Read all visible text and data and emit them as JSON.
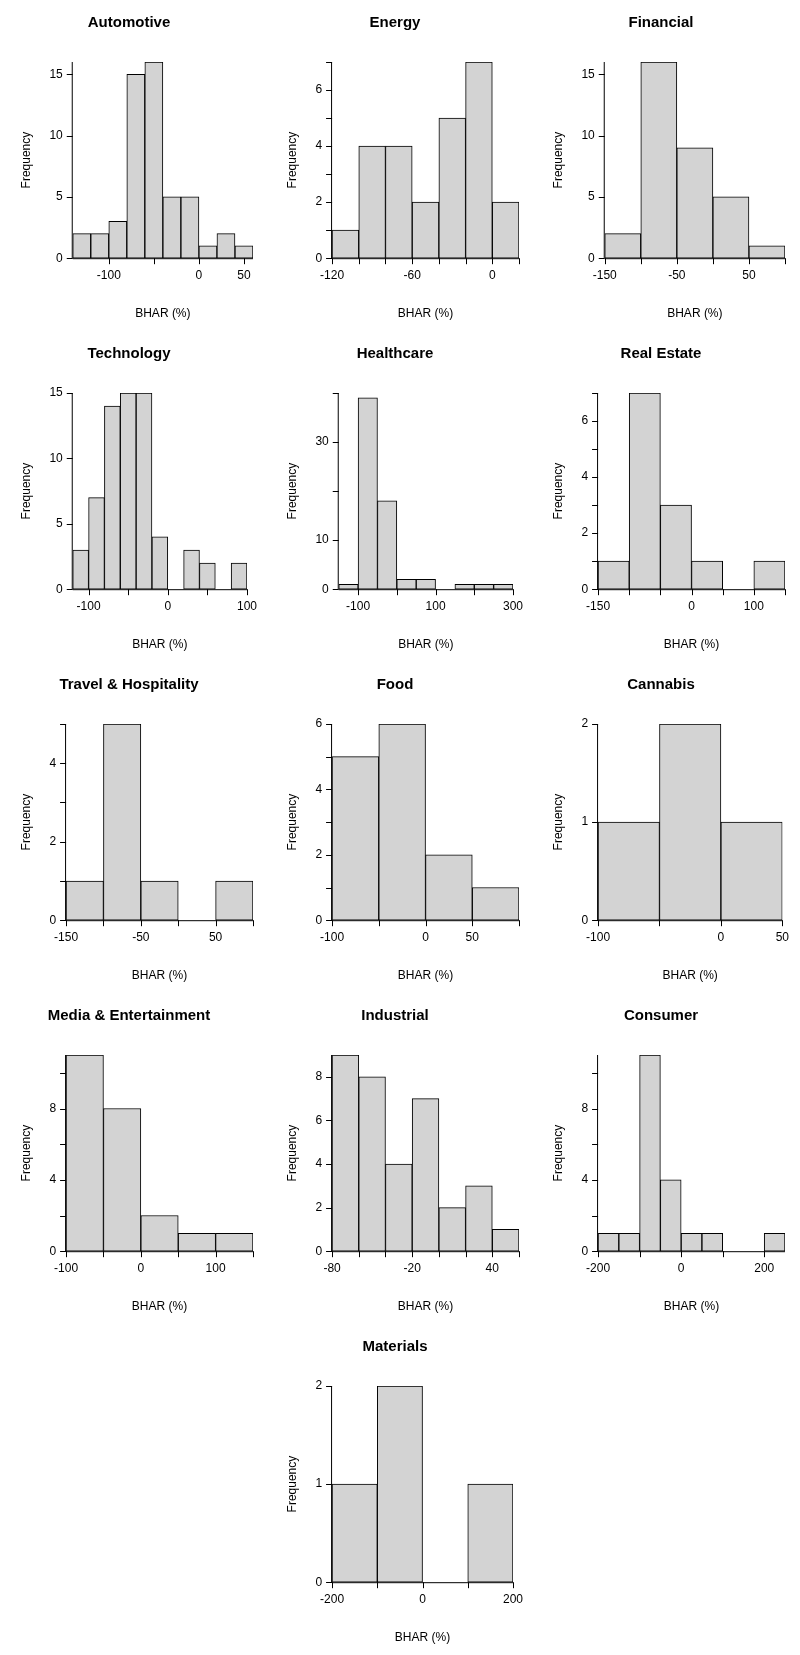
{
  "chart_data": [
    {
      "type": "histogram",
      "title": "Automotive",
      "xlabel": "BHAR (%)",
      "ylabel": "Frequency",
      "color": "#d3d3d3",
      "bins": [
        -140,
        -120,
        -100,
        -80,
        -60,
        -40,
        -20,
        0,
        20,
        40,
        60
      ],
      "values": [
        2,
        2,
        3,
        15,
        16,
        5,
        5,
        1,
        2,
        1
      ],
      "xlim": [
        -140,
        60
      ],
      "xticks": [
        -100,
        {
          "value": -50,
          "label": null
        },
        0,
        50
      ],
      "ylim": [
        0,
        16
      ],
      "yticks": [
        0,
        5,
        10,
        15
      ]
    },
    {
      "type": "histogram",
      "title": "Energy",
      "xlabel": "BHAR (%)",
      "ylabel": "Frequency",
      "color": "#d3d3d3",
      "bins": [
        -120,
        -100,
        -80,
        -60,
        -40,
        -20,
        0,
        20
      ],
      "values": [
        1,
        4,
        4,
        2,
        5,
        7,
        2
      ],
      "xlim": [
        -120,
        20
      ],
      "xticks": [
        -120,
        {
          "value": -100,
          "label": null
        },
        {
          "value": -80,
          "label": null
        },
        -60,
        {
          "value": -40,
          "label": null
        },
        {
          "value": -20,
          "label": null
        },
        0,
        {
          "value": 20,
          "label": null
        }
      ],
      "ylim": [
        0,
        7
      ],
      "yticks": [
        0,
        {
          "value": 1,
          "label": null
        },
        2,
        {
          "value": 3,
          "label": null
        },
        4,
        {
          "value": 5,
          "label": null
        },
        6,
        {
          "value": 7,
          "label": null
        }
      ]
    },
    {
      "type": "histogram",
      "title": "Financial",
      "xlabel": "BHAR (%)",
      "ylabel": "Frequency",
      "color": "#d3d3d3",
      "bins": [
        -150,
        -100,
        -50,
        0,
        50,
        100
      ],
      "values": [
        2,
        16,
        9,
        5,
        1
      ],
      "xlim": [
        -150,
        100
      ],
      "xticks": [
        -150,
        {
          "value": -100,
          "label": null
        },
        -50,
        {
          "value": 0,
          "label": null
        },
        50,
        {
          "value": 100,
          "label": null
        }
      ],
      "ylim": [
        0,
        16
      ],
      "yticks": [
        0,
        5,
        10,
        15
      ]
    },
    {
      "type": "histogram",
      "title": "Technology",
      "xlabel": "BHAR (%)",
      "ylabel": "Frequency",
      "color": "#d3d3d3",
      "bins": [
        -120,
        -100,
        -80,
        -60,
        -40,
        -20,
        0,
        20,
        40,
        60,
        80,
        100
      ],
      "values": [
        3,
        7,
        14,
        15,
        15,
        4,
        0,
        3,
        2,
        0,
        2
      ],
      "xlim": [
        -120,
        100
      ],
      "xticks": [
        -100,
        {
          "value": -50,
          "label": null
        },
        0,
        {
          "value": 50,
          "label": null
        },
        100
      ],
      "ylim": [
        0,
        15
      ],
      "yticks": [
        0,
        5,
        10,
        15
      ]
    },
    {
      "type": "histogram",
      "title": "Healthcare",
      "xlabel": "BHAR (%)",
      "ylabel": "Frequency",
      "color": "#d3d3d3",
      "bins": [
        -150,
        -100,
        -50,
        0,
        50,
        100,
        150,
        200,
        250,
        300
      ],
      "values": [
        1,
        39,
        18,
        2,
        2,
        0,
        1,
        1,
        1
      ],
      "xlim": [
        -150,
        300
      ],
      "xticks": [
        -100,
        {
          "value": 0,
          "label": null
        },
        100,
        {
          "value": 200,
          "label": null
        },
        300
      ],
      "ylim": [
        0,
        40
      ],
      "yticks": [
        0,
        10,
        {
          "value": 20,
          "label": null
        },
        30,
        {
          "value": 40,
          "label": null
        }
      ]
    },
    {
      "type": "histogram",
      "title": "Real Estate",
      "xlabel": "BHAR (%)",
      "ylabel": "Frequency",
      "color": "#d3d3d3",
      "bins": [
        -150,
        -100,
        -50,
        0,
        50,
        100,
        150
      ],
      "values": [
        1,
        7,
        3,
        1,
        0,
        1
      ],
      "xlim": [
        -150,
        150
      ],
      "xticks": [
        -150,
        {
          "value": -100,
          "label": null
        },
        {
          "value": -50,
          "label": null
        },
        0,
        {
          "value": 50,
          "label": null
        },
        100,
        {
          "value": 150,
          "label": null
        }
      ],
      "ylim": [
        0,
        7
      ],
      "yticks": [
        0,
        {
          "value": 1,
          "label": null
        },
        2,
        {
          "value": 3,
          "label": null
        },
        4,
        {
          "value": 5,
          "label": null
        },
        6,
        {
          "value": 7,
          "label": null
        }
      ]
    },
    {
      "type": "histogram",
      "title": "Travel & Hospitality",
      "xlabel": "BHAR (%)",
      "ylabel": "Frequency",
      "color": "#d3d3d3",
      "bins": [
        -150,
        -100,
        -50,
        0,
        50,
        100
      ],
      "values": [
        1,
        5,
        1,
        0,
        1
      ],
      "xlim": [
        -150,
        100
      ],
      "xticks": [
        -150,
        {
          "value": -100,
          "label": null
        },
        -50,
        {
          "value": 0,
          "label": null
        },
        50,
        {
          "value": 100,
          "label": null
        }
      ],
      "ylim": [
        0,
        5
      ],
      "yticks": [
        0,
        {
          "value": 1,
          "label": null
        },
        2,
        {
          "value": 3,
          "label": null
        },
        4,
        {
          "value": 5,
          "label": null
        }
      ]
    },
    {
      "type": "histogram",
      "title": "Food",
      "xlabel": "BHAR (%)",
      "ylabel": "Frequency",
      "color": "#d3d3d3",
      "bins": [
        -100,
        -50,
        0,
        50,
        100
      ],
      "values": [
        5,
        6,
        2,
        1
      ],
      "xlim": [
        -100,
        100
      ],
      "xticks": [
        -100,
        {
          "value": -50,
          "label": null
        },
        0,
        50,
        {
          "value": 100,
          "label": null
        }
      ],
      "ylim": [
        0,
        6
      ],
      "yticks": [
        0,
        {
          "value": 1,
          "label": null
        },
        2,
        {
          "value": 3,
          "label": null
        },
        4,
        {
          "value": 5,
          "label": null
        },
        6
      ]
    },
    {
      "type": "histogram",
      "title": "Cannabis",
      "xlabel": "BHAR (%)",
      "ylabel": "Frequency",
      "color": "#d3d3d3",
      "bins": [
        -100,
        -50,
        0,
        50
      ],
      "values": [
        1,
        2,
        1
      ],
      "xlim": [
        -100,
        50
      ],
      "xticks": [
        -100,
        {
          "value": -50,
          "label": null
        },
        0,
        50
      ],
      "ylim": [
        0,
        2
      ],
      "yticks": [
        0,
        1,
        2
      ]
    },
    {
      "type": "histogram",
      "title": "Media & Entertainment",
      "xlabel": "BHAR (%)",
      "ylabel": "Frequency",
      "color": "#d3d3d3",
      "bins": [
        -100,
        -50,
        0,
        50,
        100,
        150
      ],
      "values": [
        11,
        8,
        2,
        1,
        1
      ],
      "xlim": [
        -100,
        150
      ],
      "xticks": [
        -100,
        {
          "value": -50,
          "label": null
        },
        0,
        {
          "value": 50,
          "label": null
        },
        100,
        {
          "value": 150,
          "label": null
        }
      ],
      "ylim": [
        0,
        11
      ],
      "yticks": [
        0,
        {
          "value": 2,
          "label": null
        },
        4,
        {
          "value": 6,
          "label": null
        },
        8,
        {
          "value": 10,
          "label": null
        }
      ]
    },
    {
      "type": "histogram",
      "title": "Industrial",
      "xlabel": "BHAR (%)",
      "ylabel": "Frequency",
      "color": "#d3d3d3",
      "bins": [
        -80,
        -60,
        -40,
        -20,
        0,
        20,
        40,
        60
      ],
      "values": [
        9,
        8,
        4,
        7,
        2,
        3,
        1
      ],
      "xlim": [
        -80,
        60
      ],
      "xticks": [
        -80,
        {
          "value": -60,
          "label": null
        },
        {
          "value": -40,
          "label": null
        },
        -20,
        {
          "value": 0,
          "label": null
        },
        {
          "value": 20,
          "label": null
        },
        40,
        {
          "value": 60,
          "label": null
        }
      ],
      "ylim": [
        0,
        9
      ],
      "yticks": [
        0,
        2,
        4,
        6,
        8
      ]
    },
    {
      "type": "histogram",
      "title": "Consumer",
      "xlabel": "BHAR (%)",
      "ylabel": "Frequency",
      "color": "#d3d3d3",
      "bins": [
        -200,
        -150,
        -100,
        -50,
        0,
        50,
        100,
        150,
        200,
        250
      ],
      "values": [
        1,
        1,
        11,
        4,
        1,
        1,
        0,
        0,
        1
      ],
      "xlim": [
        -200,
        250
      ],
      "xticks": [
        -200,
        {
          "value": -100,
          "label": null
        },
        0,
        {
          "value": 100,
          "label": null
        },
        200
      ],
      "ylim": [
        0,
        11
      ],
      "yticks": [
        0,
        {
          "value": 2,
          "label": null
        },
        4,
        {
          "value": 6,
          "label": null
        },
        8,
        {
          "value": 10,
          "label": null
        }
      ]
    },
    {
      "type": "histogram",
      "title": "Materials",
      "xlabel": "BHAR (%)",
      "ylabel": "Frequency",
      "color": "#d3d3d3",
      "bins": [
        -200,
        -100,
        0,
        100,
        200
      ],
      "values": [
        1,
        2,
        0,
        1
      ],
      "xlim": [
        -200,
        200
      ],
      "xticks": [
        -200,
        {
          "value": -100,
          "label": null
        },
        0,
        {
          "value": 100,
          "label": null
        },
        200
      ],
      "ylim": [
        0,
        2
      ],
      "yticks": [
        0,
        1,
        2
      ]
    }
  ]
}
